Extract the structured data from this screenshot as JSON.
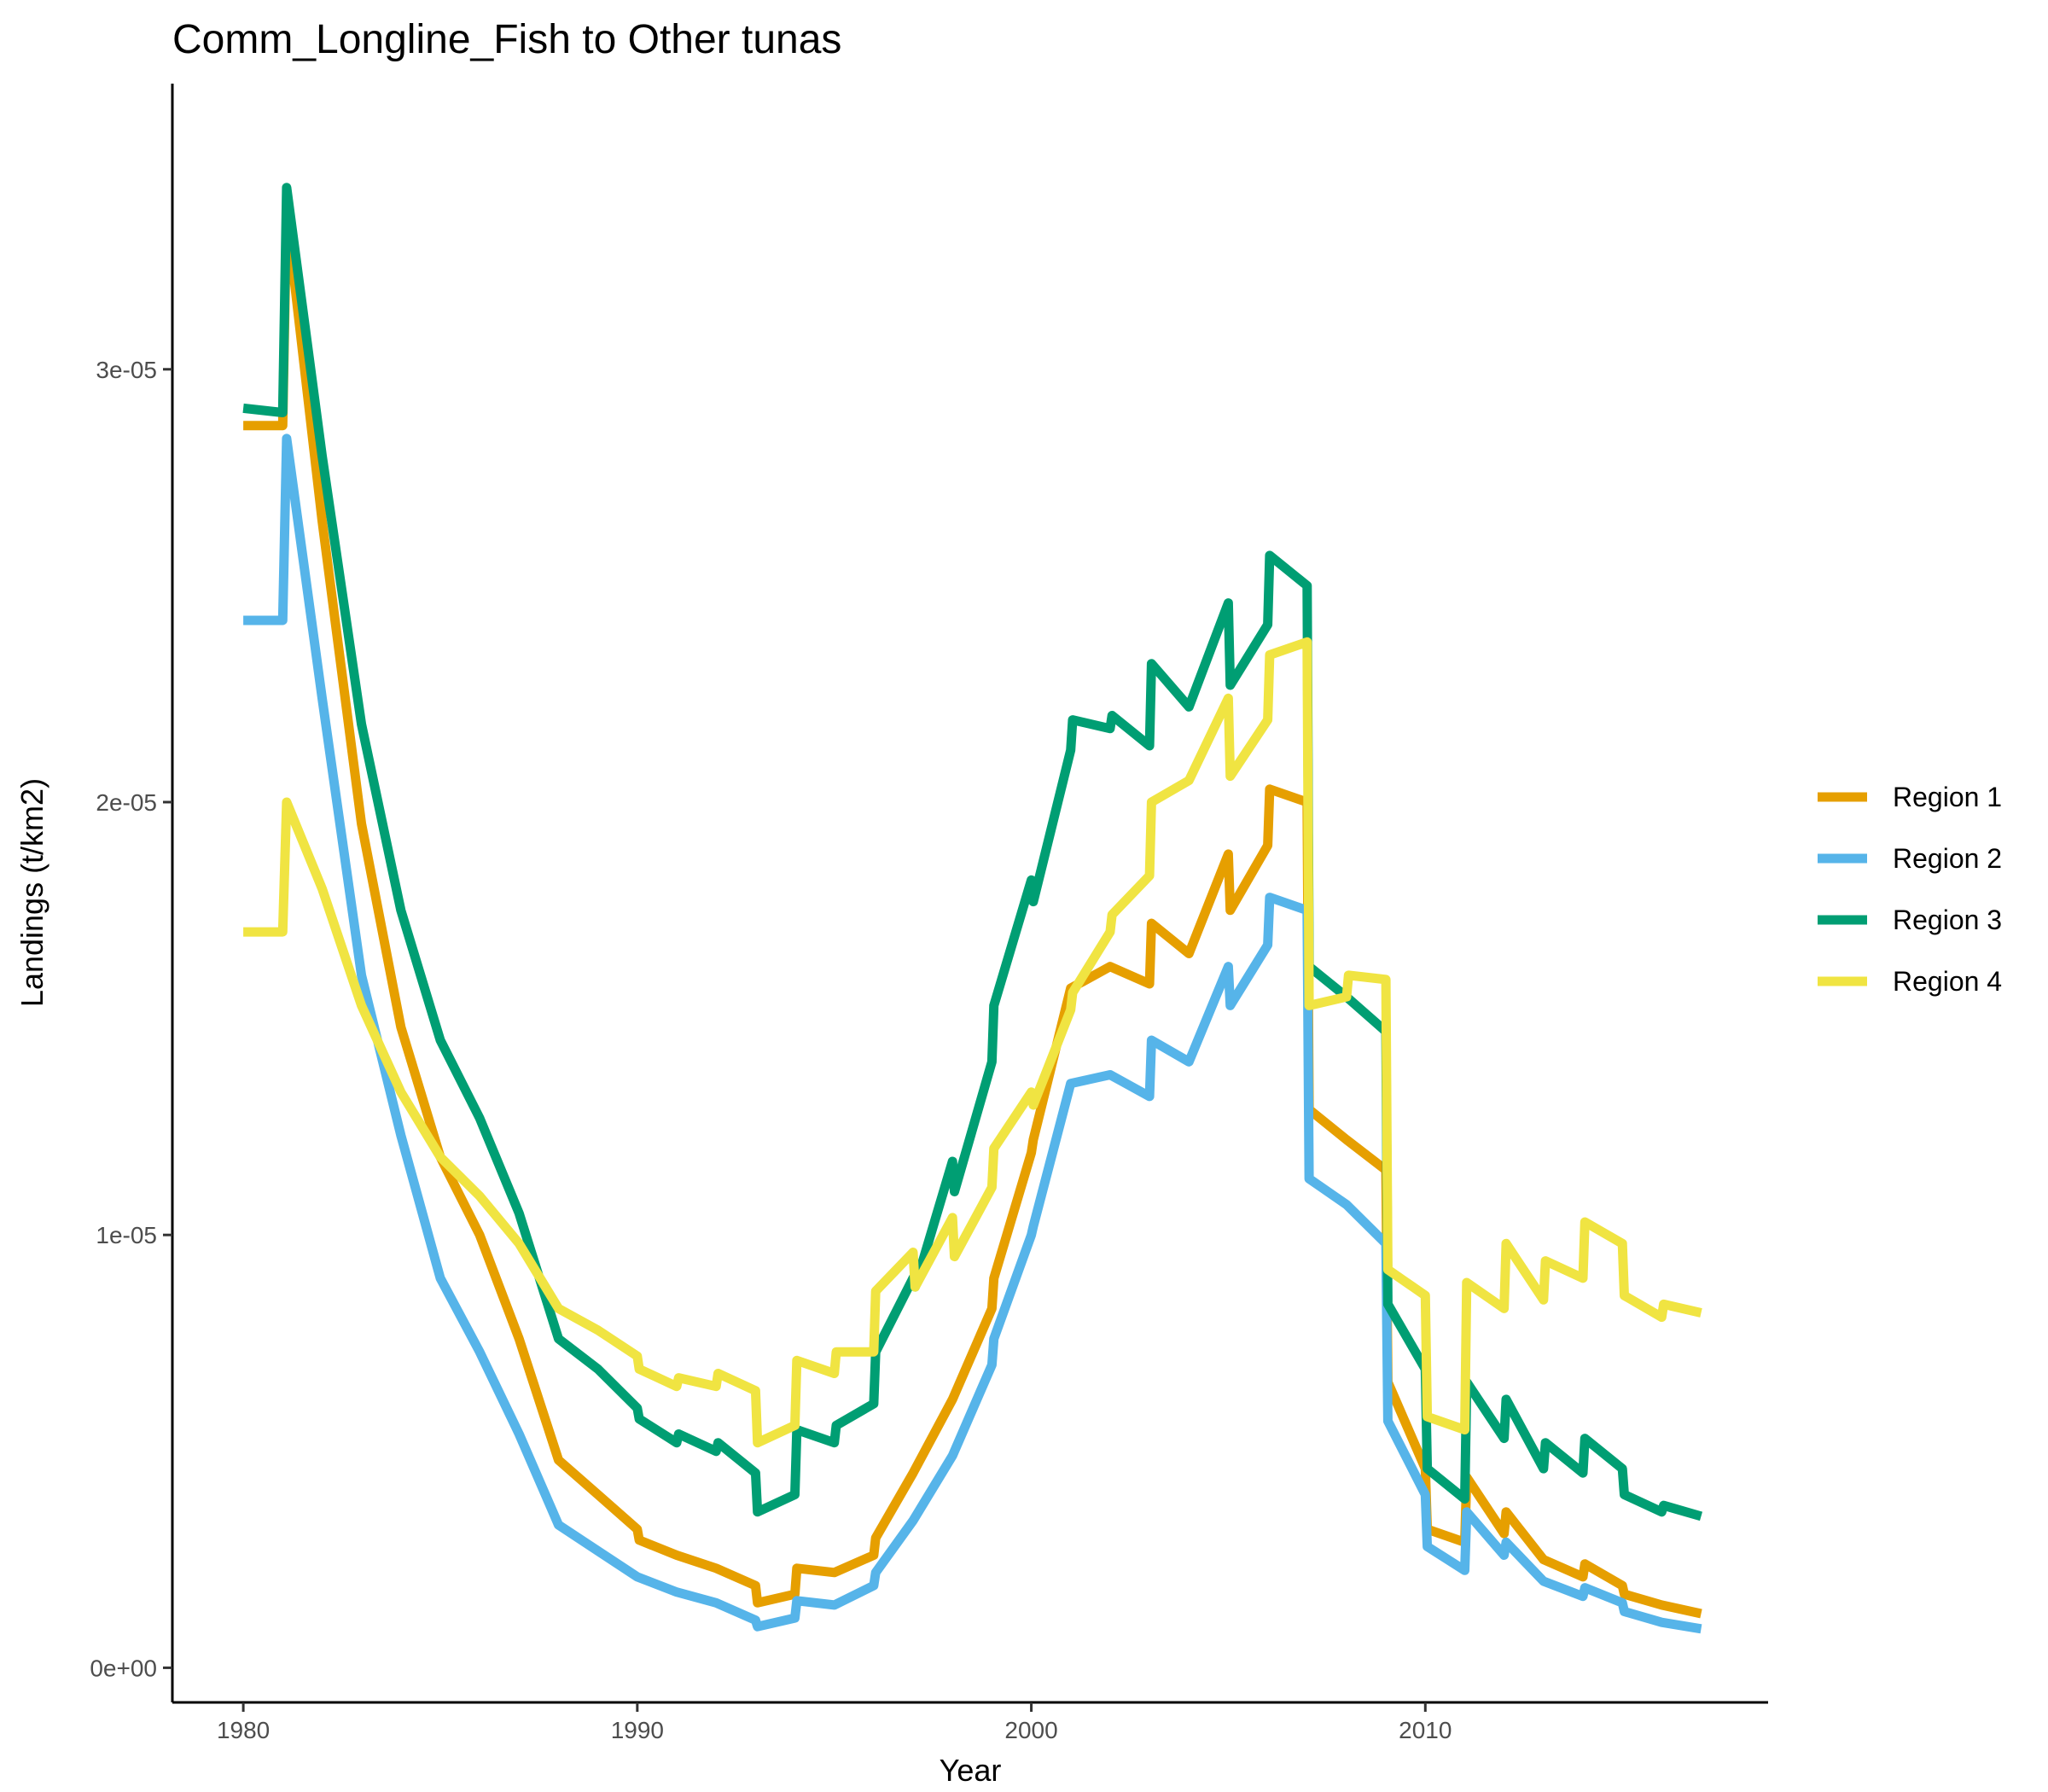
{
  "chart_data": {
    "type": "line",
    "title": "Comm_Longline_Fish to Other tunas",
    "xlabel": "Year",
    "ylabel": "Landings (t/km2)",
    "xlim": [
      1978.2,
      2018.7
    ],
    "ylim": [
      -8e-07,
      3.66e-05
    ],
    "x_ticks": [
      1980,
      1990,
      2000,
      2010
    ],
    "x_tick_labels": [
      "1980",
      "1990",
      "2000",
      "2010"
    ],
    "y_ticks": [
      0,
      1e-05,
      2e-05,
      3e-05
    ],
    "y_tick_labels": [
      "0e+00",
      "1e-05",
      "2e-05",
      "3e-05"
    ],
    "legend_position": "right",
    "grid": false,
    "series": [
      {
        "name": "Region 1",
        "color": "#E69F00",
        "points": [
          [
            1980.0,
            2.87e-05
          ],
          [
            1981.0,
            2.87e-05
          ],
          [
            1981.1,
            3.36e-05
          ],
          [
            1982.0,
            2.65e-05
          ],
          [
            1983.0,
            1.95e-05
          ],
          [
            1984.0,
            1.48e-05
          ],
          [
            1985.0,
            1.18e-05
          ],
          [
            1986.0,
            1e-05
          ],
          [
            1987.0,
            7.6e-06
          ],
          [
            1988.0,
            4.8e-06
          ],
          [
            1989.0,
            4e-06
          ],
          [
            1990.0,
            3.2e-06
          ],
          [
            1990.05,
            2.95e-06
          ],
          [
            1991.0,
            2.6e-06
          ],
          [
            1992.0,
            2.3e-06
          ],
          [
            1993.0,
            1.9e-06
          ],
          [
            1993.05,
            1.5e-06
          ],
          [
            1994.0,
            1.7e-06
          ],
          [
            1994.05,
            2.3e-06
          ],
          [
            1995.0,
            2.2e-06
          ],
          [
            1996.0,
            2.6e-06
          ],
          [
            1996.05,
            3e-06
          ],
          [
            1997.0,
            4.5e-06
          ],
          [
            1998.0,
            6.2e-06
          ],
          [
            1999.0,
            8.3e-06
          ],
          [
            1999.05,
            9e-06
          ],
          [
            2000.0,
            1.19e-05
          ],
          [
            2000.05,
            1.22e-05
          ],
          [
            2001.0,
            1.57e-05
          ],
          [
            2002.0,
            1.62e-05
          ],
          [
            2003.0,
            1.58e-05
          ],
          [
            2003.05,
            1.72e-05
          ],
          [
            2004.0,
            1.65e-05
          ],
          [
            2005.0,
            1.88e-05
          ],
          [
            2005.05,
            1.75e-05
          ],
          [
            2006.0,
            1.9e-05
          ],
          [
            2006.05,
            2.03e-05
          ],
          [
            2007.0,
            2e-05
          ],
          [
            2007.05,
            1.29e-05
          ],
          [
            2008.0,
            1.22e-05
          ],
          [
            2009.0,
            1.15e-05
          ],
          [
            2009.05,
            6.6e-06
          ],
          [
            2010.0,
            4.6e-06
          ],
          [
            2010.05,
            3.2e-06
          ],
          [
            2011.0,
            2.9e-06
          ],
          [
            2011.05,
            4.4e-06
          ],
          [
            2012.0,
            3.1e-06
          ],
          [
            2012.05,
            3.6e-06
          ],
          [
            2013.0,
            2.5e-06
          ],
          [
            2014.0,
            2.1e-06
          ],
          [
            2014.05,
            2.4e-06
          ],
          [
            2015.0,
            1.9e-06
          ],
          [
            2015.05,
            1.7e-06
          ],
          [
            2016.0,
            1.45e-06
          ],
          [
            2017.0,
            1.25e-06
          ]
        ]
      },
      {
        "name": "Region 2",
        "color": "#56B4E9",
        "points": [
          [
            1980.0,
            2.42e-05
          ],
          [
            1981.0,
            2.42e-05
          ],
          [
            1981.1,
            2.84e-05
          ],
          [
            1982.0,
            2.24e-05
          ],
          [
            1983.0,
            1.6e-05
          ],
          [
            1984.0,
            1.23e-05
          ],
          [
            1985.0,
            9e-06
          ],
          [
            1986.0,
            7.3e-06
          ],
          [
            1987.0,
            5.4e-06
          ],
          [
            1988.0,
            3.3e-06
          ],
          [
            1989.0,
            2.7e-06
          ],
          [
            1990.0,
            2.1e-06
          ],
          [
            1991.0,
            1.75e-06
          ],
          [
            1992.0,
            1.5e-06
          ],
          [
            1993.0,
            1.1e-06
          ],
          [
            1993.05,
            9.5e-07
          ],
          [
            1994.0,
            1.15e-06
          ],
          [
            1994.05,
            1.55e-06
          ],
          [
            1995.0,
            1.45e-06
          ],
          [
            1996.0,
            1.9e-06
          ],
          [
            1996.05,
            2.2e-06
          ],
          [
            1997.0,
            3.4e-06
          ],
          [
            1998.0,
            4.9e-06
          ],
          [
            1999.0,
            7e-06
          ],
          [
            1999.05,
            7.6e-06
          ],
          [
            2000.0,
            1e-05
          ],
          [
            2000.05,
            1.02e-05
          ],
          [
            2001.0,
            1.35e-05
          ],
          [
            2002.0,
            1.37e-05
          ],
          [
            2003.0,
            1.32e-05
          ],
          [
            2003.05,
            1.45e-05
          ],
          [
            2004.0,
            1.4e-05
          ],
          [
            2005.0,
            1.62e-05
          ],
          [
            2005.05,
            1.53e-05
          ],
          [
            2006.0,
            1.67e-05
          ],
          [
            2006.05,
            1.78e-05
          ],
          [
            2007.0,
            1.75e-05
          ],
          [
            2007.05,
            1.13e-05
          ],
          [
            2008.0,
            1.07e-05
          ],
          [
            2009.0,
            9.8e-06
          ],
          [
            2009.05,
            5.7e-06
          ],
          [
            2010.0,
            4e-06
          ],
          [
            2010.05,
            2.8e-06
          ],
          [
            2011.0,
            2.25e-06
          ],
          [
            2011.05,
            3.6e-06
          ],
          [
            2012.0,
            2.6e-06
          ],
          [
            2012.05,
            2.9e-06
          ],
          [
            2013.0,
            2e-06
          ],
          [
            2014.0,
            1.65e-06
          ],
          [
            2014.05,
            1.85e-06
          ],
          [
            2015.0,
            1.5e-06
          ],
          [
            2015.05,
            1.3e-06
          ],
          [
            2016.0,
            1.05e-06
          ],
          [
            2017.0,
            9e-07
          ]
        ]
      },
      {
        "name": "Region 3",
        "color": "#009E73",
        "points": [
          [
            1980.0,
            2.91e-05
          ],
          [
            1981.0,
            2.9e-05
          ],
          [
            1981.1,
            3.42e-05
          ],
          [
            1982.0,
            2.8e-05
          ],
          [
            1983.0,
            2.18e-05
          ],
          [
            1984.0,
            1.75e-05
          ],
          [
            1985.0,
            1.45e-05
          ],
          [
            1986.0,
            1.27e-05
          ],
          [
            1987.0,
            1.05e-05
          ],
          [
            1988.0,
            7.6e-06
          ],
          [
            1989.0,
            6.9e-06
          ],
          [
            1990.0,
            6e-06
          ],
          [
            1990.05,
            5.75e-06
          ],
          [
            1991.0,
            5.2e-06
          ],
          [
            1991.05,
            5.4e-06
          ],
          [
            1992.0,
            5e-06
          ],
          [
            1992.05,
            5.2e-06
          ],
          [
            1993.0,
            4.5e-06
          ],
          [
            1993.05,
            3.6e-06
          ],
          [
            1994.0,
            4e-06
          ],
          [
            1994.05,
            5.5e-06
          ],
          [
            1995.0,
            5.2e-06
          ],
          [
            1995.05,
            5.6e-06
          ],
          [
            1996.0,
            6.1e-06
          ],
          [
            1996.05,
            7.3e-06
          ],
          [
            1997.0,
            9e-06
          ],
          [
            1997.05,
            8.8e-06
          ],
          [
            1998.0,
            1.17e-05
          ],
          [
            1998.05,
            1.1e-05
          ],
          [
            1999.0,
            1.4e-05
          ],
          [
            1999.05,
            1.53e-05
          ],
          [
            2000.0,
            1.82e-05
          ],
          [
            2000.05,
            1.77e-05
          ],
          [
            2001.0,
            2.12e-05
          ],
          [
            2001.05,
            2.19e-05
          ],
          [
            2002.0,
            2.17e-05
          ],
          [
            2002.05,
            2.2e-05
          ],
          [
            2003.0,
            2.13e-05
          ],
          [
            2003.05,
            2.32e-05
          ],
          [
            2004.0,
            2.22e-05
          ],
          [
            2005.0,
            2.46e-05
          ],
          [
            2005.05,
            2.27e-05
          ],
          [
            2006.0,
            2.41e-05
          ],
          [
            2006.05,
            2.57e-05
          ],
          [
            2007.0,
            2.5e-05
          ],
          [
            2007.05,
            1.62e-05
          ],
          [
            2008.0,
            1.55e-05
          ],
          [
            2009.0,
            1.47e-05
          ],
          [
            2009.05,
            8.4e-06
          ],
          [
            2010.0,
            6.9e-06
          ],
          [
            2010.05,
            4.6e-06
          ],
          [
            2011.0,
            3.9e-06
          ],
          [
            2011.05,
            6.6e-06
          ],
          [
            2012.0,
            5.3e-06
          ],
          [
            2012.05,
            6.2e-06
          ],
          [
            2013.0,
            4.6e-06
          ],
          [
            2013.05,
            5.2e-06
          ],
          [
            2014.0,
            4.5e-06
          ],
          [
            2014.05,
            5.3e-06
          ],
          [
            2015.0,
            4.6e-06
          ],
          [
            2015.05,
            4e-06
          ],
          [
            2016.0,
            3.6e-06
          ],
          [
            2016.05,
            3.75e-06
          ],
          [
            2017.0,
            3.5e-06
          ]
        ]
      },
      {
        "name": "Region 4",
        "color": "#F0E442",
        "points": [
          [
            1980.0,
            1.7e-05
          ],
          [
            1981.0,
            1.7e-05
          ],
          [
            1981.1,
            2e-05
          ],
          [
            1982.0,
            1.8e-05
          ],
          [
            1983.0,
            1.53e-05
          ],
          [
            1984.0,
            1.33e-05
          ],
          [
            1985.0,
            1.18e-05
          ],
          [
            1986.0,
            1.09e-05
          ],
          [
            1987.0,
            9.8e-06
          ],
          [
            1988.0,
            8.3e-06
          ],
          [
            1989.0,
            7.8e-06
          ],
          [
            1990.0,
            7.2e-06
          ],
          [
            1990.05,
            6.9e-06
          ],
          [
            1991.0,
            6.5e-06
          ],
          [
            1991.05,
            6.7e-06
          ],
          [
            1992.0,
            6.5e-06
          ],
          [
            1992.05,
            6.8e-06
          ],
          [
            1993.0,
            6.4e-06
          ],
          [
            1993.05,
            5.2e-06
          ],
          [
            1994.0,
            5.6e-06
          ],
          [
            1994.05,
            7.1e-06
          ],
          [
            1995.0,
            6.8e-06
          ],
          [
            1995.05,
            7.3e-06
          ],
          [
            1996.0,
            7.3e-06
          ],
          [
            1996.05,
            8.7e-06
          ],
          [
            1997.0,
            9.6e-06
          ],
          [
            1997.05,
            8.8e-06
          ],
          [
            1998.0,
            1.04e-05
          ],
          [
            1998.05,
            9.5e-06
          ],
          [
            1999.0,
            1.11e-05
          ],
          [
            1999.05,
            1.2e-05
          ],
          [
            2000.0,
            1.33e-05
          ],
          [
            2000.05,
            1.3e-05
          ],
          [
            2001.0,
            1.52e-05
          ],
          [
            2001.05,
            1.56e-05
          ],
          [
            2002.0,
            1.7e-05
          ],
          [
            2002.05,
            1.74e-05
          ],
          [
            2003.0,
            1.83e-05
          ],
          [
            2003.05,
            2e-05
          ],
          [
            2004.0,
            2.05e-05
          ],
          [
            2005.0,
            2.24e-05
          ],
          [
            2005.05,
            2.06e-05
          ],
          [
            2006.0,
            2.19e-05
          ],
          [
            2006.05,
            2.34e-05
          ],
          [
            2007.0,
            2.37e-05
          ],
          [
            2007.05,
            1.53e-05
          ],
          [
            2008.0,
            1.55e-05
          ],
          [
            2008.05,
            1.6e-05
          ],
          [
            2009.0,
            1.59e-05
          ],
          [
            2009.05,
            9.2e-06
          ],
          [
            2010.0,
            8.6e-06
          ],
          [
            2010.05,
            5.8e-06
          ],
          [
            2011.0,
            5.5e-06
          ],
          [
            2011.05,
            8.9e-06
          ],
          [
            2012.0,
            8.3e-06
          ],
          [
            2012.05,
            9.8e-06
          ],
          [
            2013.0,
            8.5e-06
          ],
          [
            2013.05,
            9.4e-06
          ],
          [
            2014.0,
            9e-06
          ],
          [
            2014.05,
            1.03e-05
          ],
          [
            2015.0,
            9.8e-06
          ],
          [
            2015.05,
            8.6e-06
          ],
          [
            2016.0,
            8.1e-06
          ],
          [
            2016.05,
            8.4e-06
          ],
          [
            2017.0,
            8.2e-06
          ]
        ]
      }
    ]
  }
}
